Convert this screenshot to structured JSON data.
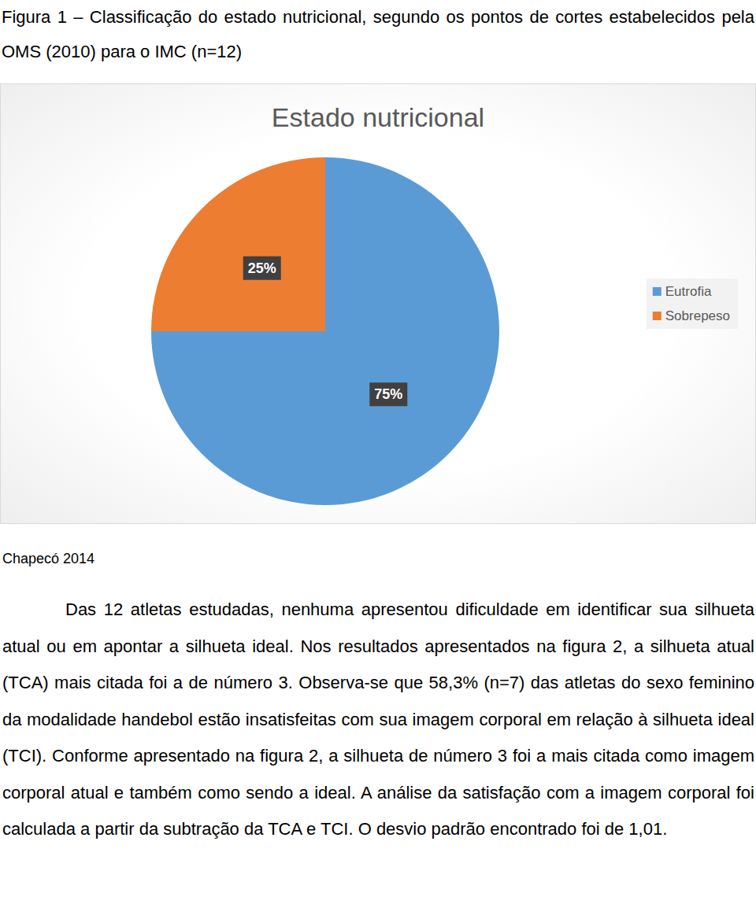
{
  "figure_caption": "Figura 1 – Classificação do estado nutricional, segundo os pontos de cortes estabelecidos pela OMS (2010) para o IMC (n=12)",
  "chart_data": {
    "type": "pie",
    "title": "Estado nutricional",
    "categories": [
      "Eutrofia",
      "Sobrepeso"
    ],
    "values": [
      75,
      25
    ],
    "value_labels": [
      "75%",
      "25%"
    ],
    "colors": [
      "#5b9bd5",
      "#ed7d31"
    ],
    "legend": "right",
    "data_labels": true
  },
  "source_note": "Chapecó 2014",
  "body_text": "Das 12 atletas estudadas, nenhuma apresentou dificuldade em identificar sua silhueta atual ou em apontar a silhueta ideal. Nos resultados apresentados na figura 2, a silhueta atual (TCA) mais citada foi a de número 3. Observa-se que 58,3% (n=7) das atletas do sexo feminino da modalidade handebol estão insatisfeitas com sua imagem corporal em relação à silhueta ideal (TCI). Conforme apresentado na figura 2, a silhueta de número 3 foi a mais citada como imagem corporal atual e também como sendo a ideal. A análise da satisfação com a imagem corporal foi calculada a partir da subtração da TCA e TCI. O desvio padrão encontrado foi de 1,01."
}
